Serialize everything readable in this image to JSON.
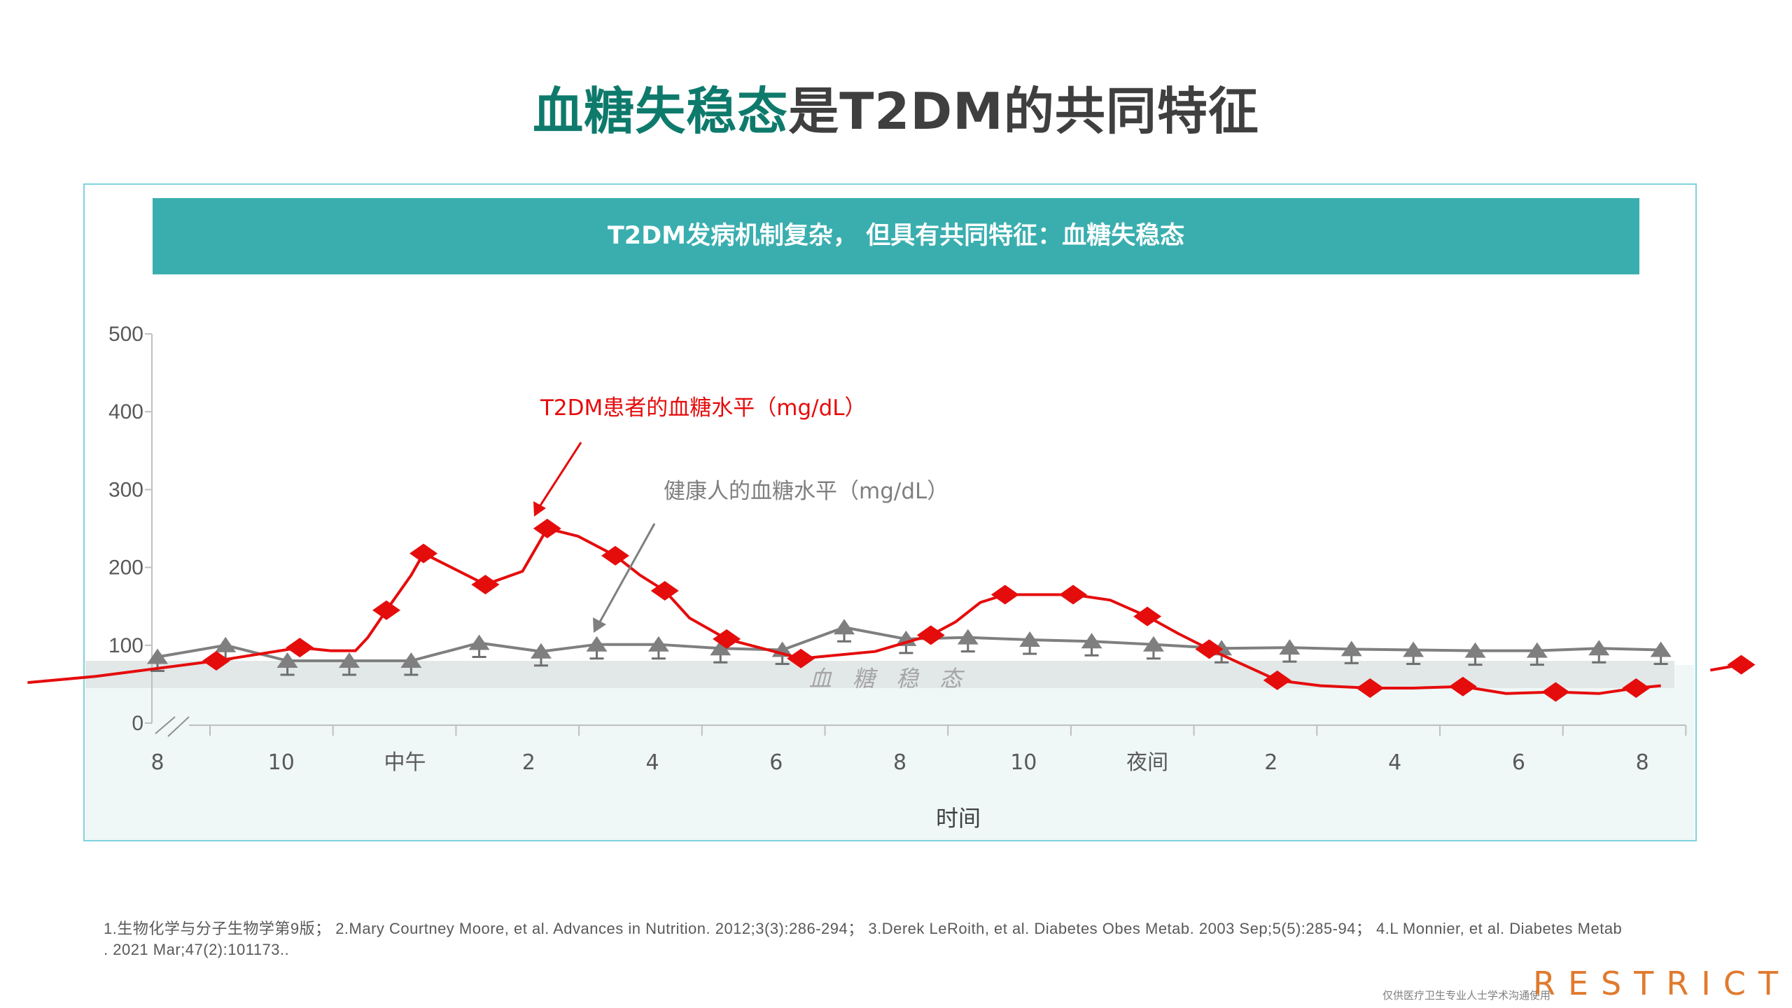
{
  "title": {
    "part1": "血糖失稳态",
    "part2": "是T2DM的共同特征"
  },
  "banner": "T2DM发病机制复杂，  但具有共同特征：血糖失稳态",
  "chart_data": {
    "type": "line",
    "xlabel": "时间",
    "ylabel": "",
    "ylim": [
      0,
      500
    ],
    "xlim": [
      8,
      32.7
    ],
    "yticks": [
      "0",
      "100",
      "200",
      "300",
      "400",
      "500"
    ],
    "xticks": [
      {
        "label": "8",
        "x": 8
      },
      {
        "label": "10",
        "x": 10
      },
      {
        "label": "中午",
        "x": 12
      },
      {
        "label": "2",
        "x": 14
      },
      {
        "label": "4",
        "x": 16
      },
      {
        "label": "6",
        "x": 18
      },
      {
        "label": "8",
        "x": 20
      },
      {
        "label": "10",
        "x": 22
      },
      {
        "label": "夜间",
        "x": 24
      },
      {
        "label": "2",
        "x": 26
      },
      {
        "label": "4",
        "x": 28
      },
      {
        "label": "6",
        "x": 30
      },
      {
        "label": "8",
        "x": 32
      }
    ],
    "band": {
      "label": "血 糖 稳 态",
      "range": [
        45,
        80
      ]
    },
    "series": [
      {
        "name": "T2DM患者的血糖水平（mg/dL）",
        "color": "#e50c0c",
        "marker": "diamond",
        "points": [
          [
            8.95,
            80
          ],
          [
            10.3,
            97
          ],
          [
            11.7,
            145
          ],
          [
            12.3,
            218
          ],
          [
            13.3,
            178
          ],
          [
            14.3,
            250
          ],
          [
            15.4,
            215
          ],
          [
            16.2,
            170
          ],
          [
            17.2,
            108
          ],
          [
            18.4,
            83
          ],
          [
            20.5,
            113
          ],
          [
            21.7,
            165
          ],
          [
            22.8,
            165
          ],
          [
            24,
            137
          ],
          [
            25,
            95
          ],
          [
            26.1,
            55
          ],
          [
            27.6,
            45
          ],
          [
            29.1,
            47
          ],
          [
            30.6,
            40
          ],
          [
            31.9,
            45
          ],
          [
            33.6,
            75
          ]
        ],
        "line": [
          [
            5.9,
            52
          ],
          [
            7,
            60
          ],
          [
            8.95,
            80
          ],
          [
            10.3,
            97
          ],
          [
            10.8,
            93
          ],
          [
            11.2,
            93
          ],
          [
            11.4,
            110
          ],
          [
            11.7,
            145
          ],
          [
            12.1,
            190
          ],
          [
            12.3,
            218
          ],
          [
            13.3,
            178
          ],
          [
            13.9,
            195
          ],
          [
            14.3,
            250
          ],
          [
            14.8,
            240
          ],
          [
            15.4,
            215
          ],
          [
            15.8,
            190
          ],
          [
            16.2,
            170
          ],
          [
            16.6,
            135
          ],
          [
            17.2,
            108
          ],
          [
            18.4,
            83
          ],
          [
            19.6,
            92
          ],
          [
            20.5,
            113
          ],
          [
            20.9,
            130
          ],
          [
            21.3,
            155
          ],
          [
            21.7,
            165
          ],
          [
            22.8,
            165
          ],
          [
            23.4,
            158
          ],
          [
            24,
            137
          ],
          [
            24.5,
            115
          ],
          [
            25,
            95
          ],
          [
            26.1,
            55
          ],
          [
            26.8,
            48
          ],
          [
            27.6,
            45
          ],
          [
            28.3,
            45
          ],
          [
            29.1,
            47
          ],
          [
            29.8,
            38
          ],
          [
            30.6,
            40
          ],
          [
            31.3,
            38
          ],
          [
            31.9,
            45
          ],
          [
            32.3,
            48
          ]
        ],
        "tail": [
          [
            33.1,
            68
          ],
          [
            33.6,
            75
          ]
        ]
      },
      {
        "name": "健康人的血糖水平（mg/dL）",
        "color": "#7f7f7f",
        "marker": "triangle",
        "points": [
          [
            8,
            85
          ],
          [
            9.1,
            100
          ],
          [
            10.1,
            80
          ],
          [
            11.1,
            80
          ],
          [
            12.1,
            80
          ],
          [
            13.2,
            103
          ],
          [
            14.2,
            92
          ],
          [
            15.1,
            101
          ],
          [
            16.1,
            101
          ],
          [
            17.1,
            96
          ],
          [
            18.1,
            94
          ],
          [
            19.1,
            123
          ],
          [
            20.1,
            108
          ],
          [
            21.1,
            110
          ],
          [
            22.1,
            107
          ],
          [
            23.1,
            105
          ],
          [
            24.1,
            101
          ],
          [
            25.2,
            96
          ],
          [
            26.3,
            97
          ],
          [
            27.3,
            95
          ],
          [
            28.3,
            94
          ],
          [
            29.3,
            93
          ],
          [
            30.3,
            93
          ],
          [
            31.3,
            96
          ],
          [
            32.3,
            94
          ]
        ]
      }
    ],
    "annotations": [
      {
        "text": "T2DM患者的血糖水平（mg/dL）",
        "color": "#e50c0c"
      },
      {
        "text": "健康人的血糖水平（mg/dL）",
        "color": "#7f7f7f"
      }
    ]
  },
  "references": "1.生物化学与分子生物学第9版；  2.Mary Courtney Moore, et al. Advances in Nutrition. 2012;3(3):286-294；  3.Derek LeRoith, et al. Diabetes Obes Metab. 2003 Sep;5(5):285-94；  4.L Monnier, et al. Diabetes Metab . 2021 Mar;47(2):101173..",
  "footer_note": "仅供医疗卫生专业人士学术沟通使用",
  "restricted": "RESTRICTED"
}
